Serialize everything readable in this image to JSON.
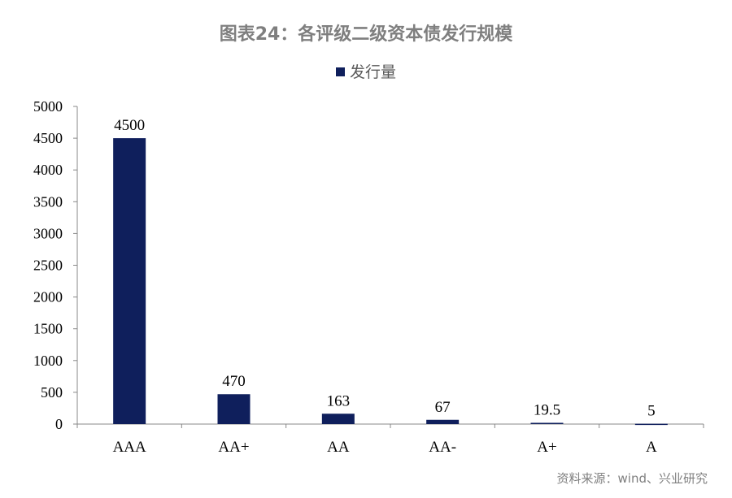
{
  "chart_data": {
    "type": "bar",
    "title": "图表24：各评级二级资本债发行规模",
    "categories": [
      "AAA",
      "AA+",
      "AA",
      "AA-",
      "A+",
      "A"
    ],
    "series": [
      {
        "name": "发行量",
        "values": [
          4500,
          470,
          163,
          67,
          19.5,
          5
        ]
      }
    ],
    "data_labels": [
      "4500",
      "470",
      "163",
      "67",
      "19.5",
      "5"
    ],
    "ylim": [
      0,
      5000
    ],
    "yticks": [
      0,
      500,
      1000,
      1500,
      2000,
      2500,
      3000,
      3500,
      4000,
      4500,
      5000
    ],
    "grid": false,
    "legend_position": "top",
    "bar_color": "#0f1f5c",
    "source": "资料来源：wind、兴业研究"
  }
}
